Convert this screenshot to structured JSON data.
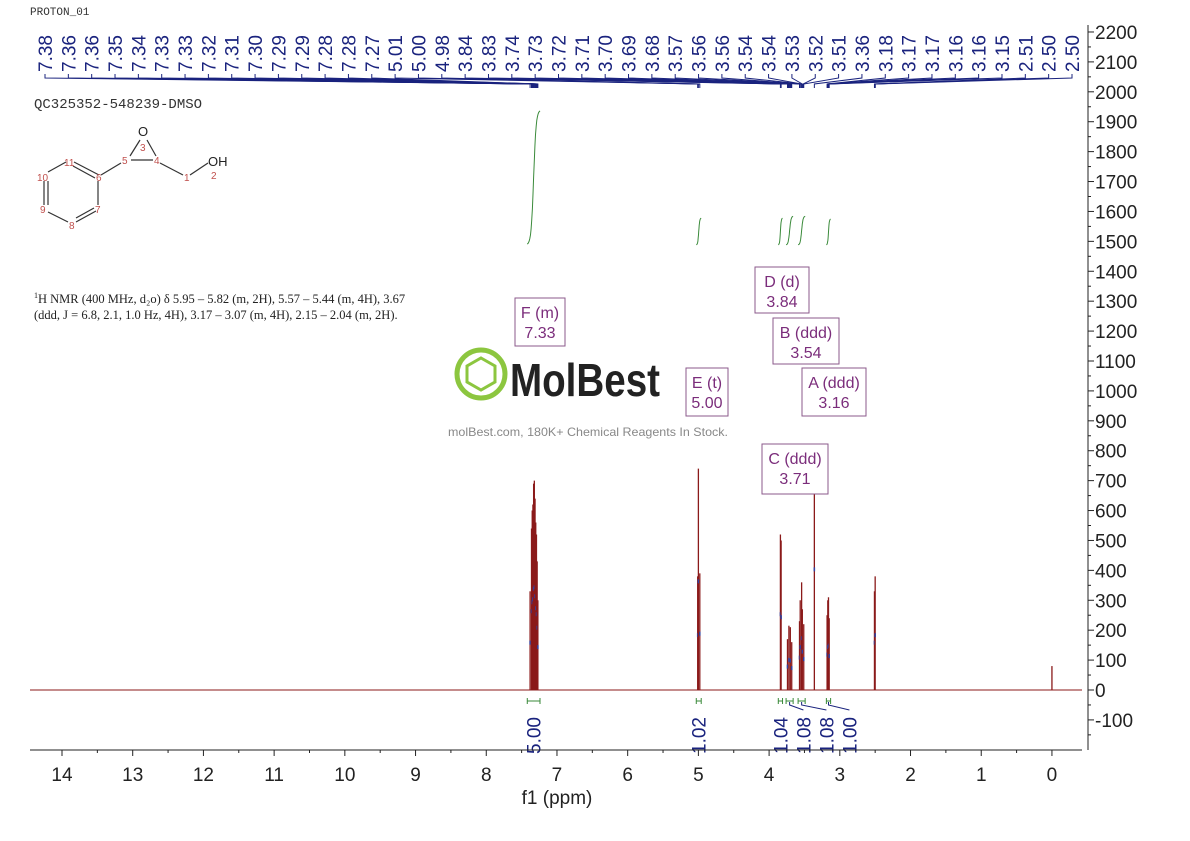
{
  "header": {
    "experiment": "PROTON_01",
    "sample": "QC325352-548239-DMSO"
  },
  "nmr_description": {
    "superscript": "1",
    "text": "H NMR (400 MHz, d₂o) δ 5.95 – 5.82 (m, 2H), 5.57 – 5.44 (m, 4H), 3.67 (ddd, J = 6.8, 2.1, 1.0 Hz, 4H), 3.17 – 3.07 (m, 4H), 2.15 – 2.04 (m, 2H)."
  },
  "molecule": {
    "atom_labels": [
      "1",
      "2",
      "3",
      "4",
      "5",
      "6",
      "7",
      "8",
      "9",
      "10",
      "11"
    ],
    "heteroatoms": [
      "O",
      "OH"
    ]
  },
  "watermark": {
    "logo_text": "MolBest",
    "tagline": "molBest.com, 180K+ Chemical Reagents In Stock."
  },
  "colors": {
    "spectrum": "#8b1a1a",
    "peak_labels": "#1a237e",
    "integrals": "#3a8a3a",
    "multiplet_boxes": "#7b2d7b",
    "axis": "#222222"
  },
  "chart_data": {
    "type": "line",
    "xlabel": "f1 (ppm)",
    "ylabel": "",
    "xlim": [
      14.4,
      -0.4
    ],
    "ylim": [
      -200,
      2200
    ],
    "x_reversed": true,
    "x_ticks": [
      14,
      13,
      12,
      11,
      10,
      9,
      8,
      7,
      6,
      5,
      4,
      3,
      2,
      1,
      0
    ],
    "y_ticks": [
      2200,
      2100,
      2000,
      1900,
      1800,
      1700,
      1600,
      1500,
      1400,
      1300,
      1200,
      1100,
      1000,
      900,
      800,
      700,
      600,
      500,
      400,
      300,
      200,
      100,
      0,
      -100
    ],
    "grid": false,
    "peak_labels": [
      "7.38",
      "7.36",
      "7.36",
      "7.35",
      "7.34",
      "7.33",
      "7.33",
      "7.32",
      "7.31",
      "7.30",
      "7.29",
      "7.29",
      "7.28",
      "7.28",
      "7.27",
      "5.01",
      "5.00",
      "4.98",
      "3.84",
      "3.83",
      "3.74",
      "3.73",
      "3.72",
      "3.71",
      "3.70",
      "3.69",
      "3.68",
      "3.57",
      "3.56",
      "3.56",
      "3.54",
      "3.54",
      "3.53",
      "3.52",
      "3.51",
      "3.36",
      "3.18",
      "3.17",
      "3.17",
      "3.16",
      "3.16",
      "3.15",
      "2.51",
      "2.50",
      "2.50"
    ],
    "peaks": [
      {
        "ppm": 7.38,
        "intensity": 330
      },
      {
        "ppm": 7.36,
        "intensity": 540
      },
      {
        "ppm": 7.35,
        "intensity": 600
      },
      {
        "ppm": 7.34,
        "intensity": 620
      },
      {
        "ppm": 7.33,
        "intensity": 690
      },
      {
        "ppm": 7.32,
        "intensity": 700
      },
      {
        "ppm": 7.31,
        "intensity": 640
      },
      {
        "ppm": 7.3,
        "intensity": 560
      },
      {
        "ppm": 7.29,
        "intensity": 520
      },
      {
        "ppm": 7.28,
        "intensity": 430
      },
      {
        "ppm": 7.27,
        "intensity": 300
      },
      {
        "ppm": 5.01,
        "intensity": 380
      },
      {
        "ppm": 5.0,
        "intensity": 740
      },
      {
        "ppm": 4.98,
        "intensity": 390
      },
      {
        "ppm": 3.84,
        "intensity": 520
      },
      {
        "ppm": 3.83,
        "intensity": 500
      },
      {
        "ppm": 3.74,
        "intensity": 170
      },
      {
        "ppm": 3.72,
        "intensity": 215
      },
      {
        "ppm": 3.7,
        "intensity": 210
      },
      {
        "ppm": 3.68,
        "intensity": 160
      },
      {
        "ppm": 3.57,
        "intensity": 230
      },
      {
        "ppm": 3.56,
        "intensity": 300
      },
      {
        "ppm": 3.54,
        "intensity": 360
      },
      {
        "ppm": 3.53,
        "intensity": 270
      },
      {
        "ppm": 3.51,
        "intensity": 220
      },
      {
        "ppm": 3.36,
        "intensity": 820
      },
      {
        "ppm": 3.18,
        "intensity": 250
      },
      {
        "ppm": 3.17,
        "intensity": 300
      },
      {
        "ppm": 3.16,
        "intensity": 310
      },
      {
        "ppm": 3.15,
        "intensity": 240
      },
      {
        "ppm": 2.51,
        "intensity": 330
      },
      {
        "ppm": 2.5,
        "intensity": 380
      },
      {
        "ppm": 0.0,
        "intensity": 80
      }
    ],
    "integrals": [
      {
        "from": 7.42,
        "to": 7.24,
        "value": "5.00",
        "rise": 1500
      },
      {
        "from": 5.03,
        "to": 4.96,
        "value": "1.02",
        "rise": 300
      },
      {
        "from": 3.87,
        "to": 3.81,
        "value": "1.04",
        "rise": 300
      },
      {
        "from": 3.76,
        "to": 3.66,
        "value": "1.08",
        "rise": 320
      },
      {
        "from": 3.59,
        "to": 3.49,
        "value": "1.08",
        "rise": 320
      },
      {
        "from": 3.19,
        "to": 3.13,
        "value": "1.00",
        "rise": 290
      }
    ],
    "multiplets": [
      {
        "id": "F",
        "type": "(m)",
        "shift": "7.33"
      },
      {
        "id": "E",
        "type": "(t)",
        "shift": "5.00"
      },
      {
        "id": "D",
        "type": "(d)",
        "shift": "3.84"
      },
      {
        "id": "B",
        "type": "(ddd)",
        "shift": "3.54"
      },
      {
        "id": "A",
        "type": "(ddd)",
        "shift": "3.16"
      },
      {
        "id": "C",
        "type": "(ddd)",
        "shift": "3.71"
      }
    ]
  }
}
